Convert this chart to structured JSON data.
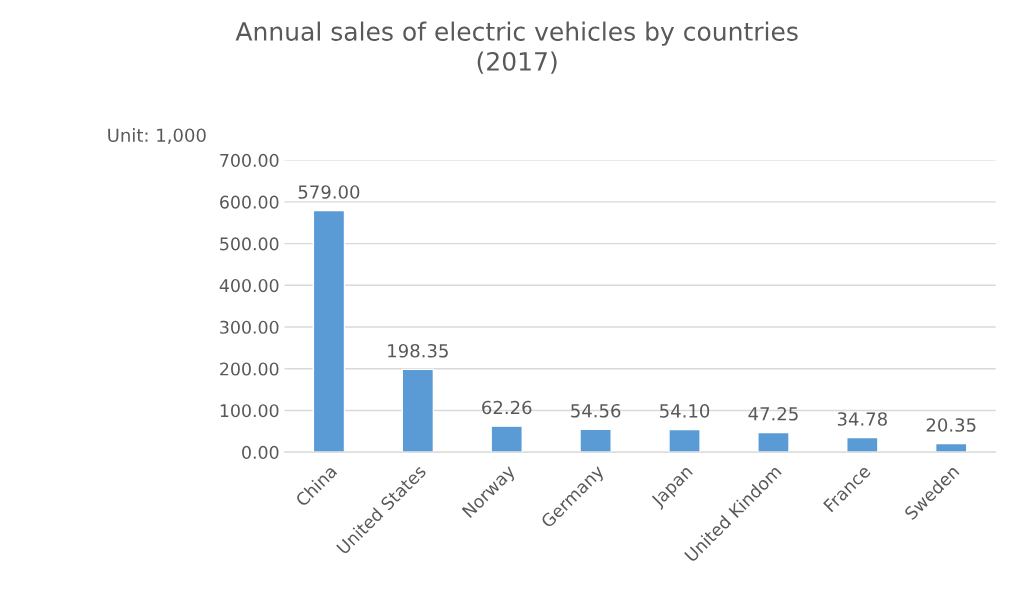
{
  "chart_data": {
    "type": "bar",
    "title": "Annual sales of electric vehicles by countries\n(2017)",
    "ylabel": "Unit: 1,000",
    "categories": [
      "China",
      "United States",
      "Norway",
      "Germany",
      "Japan",
      "United Kindom",
      "France",
      "Sweden"
    ],
    "values": [
      579.0,
      198.35,
      62.26,
      54.56,
      54.1,
      47.25,
      34.78,
      20.35
    ],
    "value_labels": [
      "579.00",
      "198.35",
      "62.26",
      "54.56",
      "54.10",
      "47.25",
      "34.78",
      "20.35"
    ],
    "color": "#5b9bd5",
    "ylim": [
      0,
      700
    ],
    "yticks": [
      {
        "value": 0,
        "label": "0.00"
      },
      {
        "value": 100,
        "label": "100.00"
      },
      {
        "value": 200,
        "label": "200.00"
      },
      {
        "value": 300,
        "label": "300.00"
      },
      {
        "value": 400,
        "label": "400.00"
      },
      {
        "value": 500,
        "label": "500.00"
      },
      {
        "value": 600,
        "label": "600.00"
      },
      {
        "value": 700,
        "label": "700.00"
      }
    ],
    "grid": "y",
    "legend": false
  }
}
